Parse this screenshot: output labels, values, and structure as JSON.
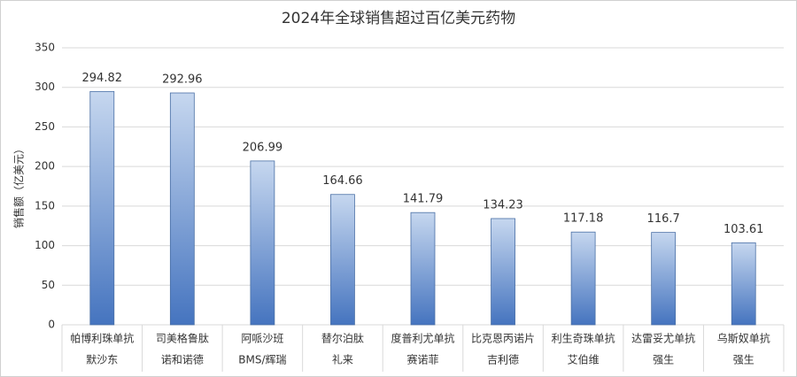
{
  "chart_data": {
    "type": "bar",
    "title": "2024年全球销售超过百亿美元药物",
    "y_label": "销售额（亿美元）",
    "categories": [
      "帕博利珠单抗",
      "司美格鲁肽",
      "阿哌沙班",
      "替尔泊肽",
      "度普利尤单抗",
      "比克恩丙诺片",
      "利生奇珠单抗",
      "达雷妥尤单抗",
      "乌斯奴单抗"
    ],
    "companies": [
      "默沙东",
      "诺和诺德",
      "BMS/辉瑞",
      "礼来",
      "赛诺菲",
      "吉利德",
      "艾伯维",
      "强生",
      "强生"
    ],
    "values": [
      294.82,
      292.96,
      206.99,
      164.66,
      141.79,
      134.23,
      117.18,
      116.7,
      103.61
    ],
    "gradient": [
      "#c6d7ef",
      "#4574bf"
    ],
    "edge_color": "#4a6fa5",
    "ylim": [
      0,
      350
    ],
    "yticks": [
      0,
      50,
      100,
      150,
      200,
      250,
      300,
      350
    ],
    "grid": true
  }
}
